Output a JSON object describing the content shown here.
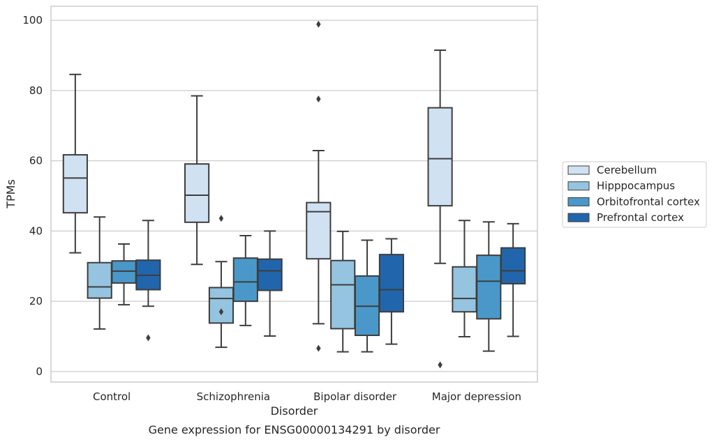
{
  "chart_data": {
    "type": "box",
    "xlabel": "Disorder",
    "ylabel": "TPMs",
    "caption": "Gene expression for ENSG00000134291 by disorder",
    "ylim": [
      -3,
      104
    ],
    "yticks": [
      0,
      20,
      40,
      60,
      80,
      100
    ],
    "grid": "horizontal",
    "legend_position": "right",
    "categories": [
      "Control",
      "Schizophrenia",
      "Bipolar disorder",
      "Major depression"
    ],
    "series": [
      {
        "name": "Cerebellum",
        "color": "#d0e1f2",
        "boxes": [
          {
            "whislo": 33.8,
            "q1": 45.2,
            "med": 55.1,
            "q3": 61.7,
            "whishi": 84.6,
            "fliers": []
          },
          {
            "whislo": 30.5,
            "q1": 42.5,
            "med": 50.2,
            "q3": 59.1,
            "whishi": 78.5,
            "fliers": []
          },
          {
            "whislo": 13.6,
            "q1": 32.1,
            "med": 45.5,
            "q3": 48.1,
            "whishi": 62.9,
            "fliers": [
              6.6,
              77.6,
              98.9
            ]
          },
          {
            "whislo": 30.8,
            "q1": 47.2,
            "med": 60.6,
            "q3": 75.1,
            "whishi": 91.5,
            "fliers": [
              1.9
            ]
          }
        ]
      },
      {
        "name": "Hipppocampus",
        "color": "#94c4df",
        "boxes": [
          {
            "whislo": 12.1,
            "q1": 20.9,
            "med": 24.1,
            "q3": 31.0,
            "whishi": 44.0,
            "fliers": []
          },
          {
            "whislo": 6.9,
            "q1": 13.8,
            "med": 20.8,
            "q3": 23.9,
            "whishi": 31.3,
            "fliers": [
              17.0,
              43.6
            ]
          },
          {
            "whislo": 5.6,
            "q1": 12.2,
            "med": 24.7,
            "q3": 31.6,
            "whishi": 39.9,
            "fliers": []
          },
          {
            "whislo": 9.9,
            "q1": 17.0,
            "med": 20.8,
            "q3": 29.8,
            "whishi": 43.0,
            "fliers": []
          }
        ]
      },
      {
        "name": "Orbitofrontal cortex",
        "color": "#4a98c9",
        "boxes": [
          {
            "whislo": 19.0,
            "q1": 25.2,
            "med": 28.6,
            "q3": 31.5,
            "whishi": 36.3,
            "fliers": []
          },
          {
            "whislo": 13.1,
            "q1": 20.0,
            "med": 25.5,
            "q3": 32.3,
            "whishi": 38.7,
            "fliers": []
          },
          {
            "whislo": 5.6,
            "q1": 10.3,
            "med": 18.6,
            "q3": 27.2,
            "whishi": 37.4,
            "fliers": []
          },
          {
            "whislo": 5.8,
            "q1": 15.0,
            "med": 25.7,
            "q3": 33.1,
            "whishi": 42.6,
            "fliers": []
          }
        ]
      },
      {
        "name": "Prefrontal cortex",
        "color": "#2166ac",
        "boxes": [
          {
            "whislo": 18.6,
            "q1": 23.3,
            "med": 27.4,
            "q3": 31.7,
            "whishi": 43.0,
            "fliers": [
              9.6
            ]
          },
          {
            "whislo": 10.1,
            "q1": 23.1,
            "med": 28.7,
            "q3": 32.0,
            "whishi": 40.0,
            "fliers": []
          },
          {
            "whislo": 7.8,
            "q1": 17.0,
            "med": 23.3,
            "q3": 33.3,
            "whishi": 37.8,
            "fliers": []
          },
          {
            "whislo": 10.0,
            "q1": 25.0,
            "med": 28.7,
            "q3": 35.2,
            "whishi": 42.1,
            "fliers": []
          }
        ]
      }
    ]
  }
}
